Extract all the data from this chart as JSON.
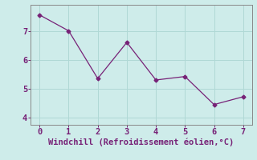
{
  "x": [
    0,
    1,
    2,
    3,
    4,
    5,
    6,
    7
  ],
  "y": [
    7.55,
    7.0,
    5.35,
    6.6,
    5.3,
    5.42,
    4.45,
    4.72
  ],
  "line_color": "#772277",
  "marker": "D",
  "marker_size": 2.5,
  "bg_color": "#ceecea",
  "grid_color": "#b0d8d5",
  "axis_color": "#888888",
  "xlabel": "Windchill (Refroidissement éolien,°C)",
  "xlabel_color": "#772277",
  "xlabel_fontsize": 7.5,
  "tick_color": "#772277",
  "tick_fontsize": 7.5,
  "xlim": [
    -0.3,
    7.3
  ],
  "ylim": [
    3.75,
    7.9
  ],
  "yticks": [
    4,
    5,
    6,
    7
  ],
  "xticks": [
    0,
    1,
    2,
    3,
    4,
    5,
    6,
    7
  ]
}
